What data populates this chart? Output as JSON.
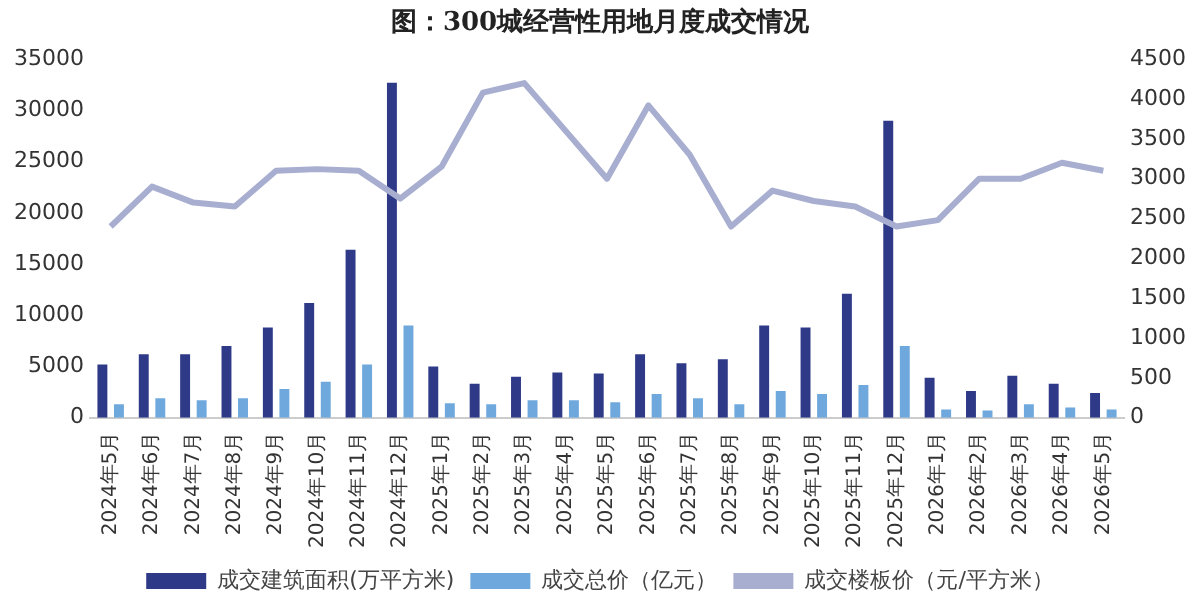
{
  "chart_data": {
    "type": "bar",
    "title": "图：300城经营性用地月度成交情况",
    "categories": [
      "2024年5月",
      "2024年6月",
      "2024年7月",
      "2024年8月",
      "2024年9月",
      "2024年10月",
      "2024年11月",
      "2024年12月",
      "2025年1月",
      "2025年2月",
      "2025年3月",
      "2025年4月",
      "2025年5月",
      "2025年6月",
      "2025年7月",
      "2025年8月",
      "2025年9月",
      "2025年10月",
      "2025年11月",
      "2025年12月",
      "2026年1月",
      "2026年2月",
      "2026年3月",
      "2026年4月",
      "2026年5月"
    ],
    "series": [
      {
        "name": "成交建筑面积(万平方米)",
        "color": "#2e3a87",
        "values": [
          5200,
          6200,
          6200,
          7000,
          8800,
          11200,
          16400,
          32700,
          5000,
          3300,
          4000,
          4400,
          4300,
          6200,
          5300,
          5700,
          9000,
          8800,
          12100,
          29000,
          3900,
          2600,
          4100,
          3300,
          2400
        ]
      },
      {
        "name": "成交总价（亿元）",
        "color": "#6fa8dc",
        "values": [
          1300,
          1900,
          1700,
          1900,
          2800,
          3500,
          5200,
          9000,
          1400,
          1300,
          1700,
          1700,
          1500,
          2300,
          1900,
          1300,
          2600,
          2300,
          3200,
          7000,
          800,
          700,
          1300,
          1000,
          800
        ]
      },
      {
        "name": "成交楼板价（元/平方米）",
        "type": "line",
        "axis": "y2",
        "color": "#a8aed0",
        "values": [
          2400,
          2900,
          2700,
          2650,
          3100,
          3120,
          3100,
          2750,
          3150,
          4080,
          4200,
          3600,
          3000,
          3920,
          3300,
          2400,
          2850,
          2720,
          2650,
          2400,
          2480,
          3000,
          3000,
          3200,
          3100
        ]
      }
    ],
    "ylim": [
      0,
      35000
    ],
    "yticks": [
      0,
      5000,
      10000,
      15000,
      20000,
      25000,
      30000,
      35000
    ],
    "y2lim": [
      0,
      4500
    ],
    "y2ticks": [
      0,
      500,
      1000,
      1500,
      2000,
      2500,
      3000,
      3500,
      4000,
      4500
    ],
    "grid": false,
    "legend": "bottom",
    "marker": "none"
  }
}
